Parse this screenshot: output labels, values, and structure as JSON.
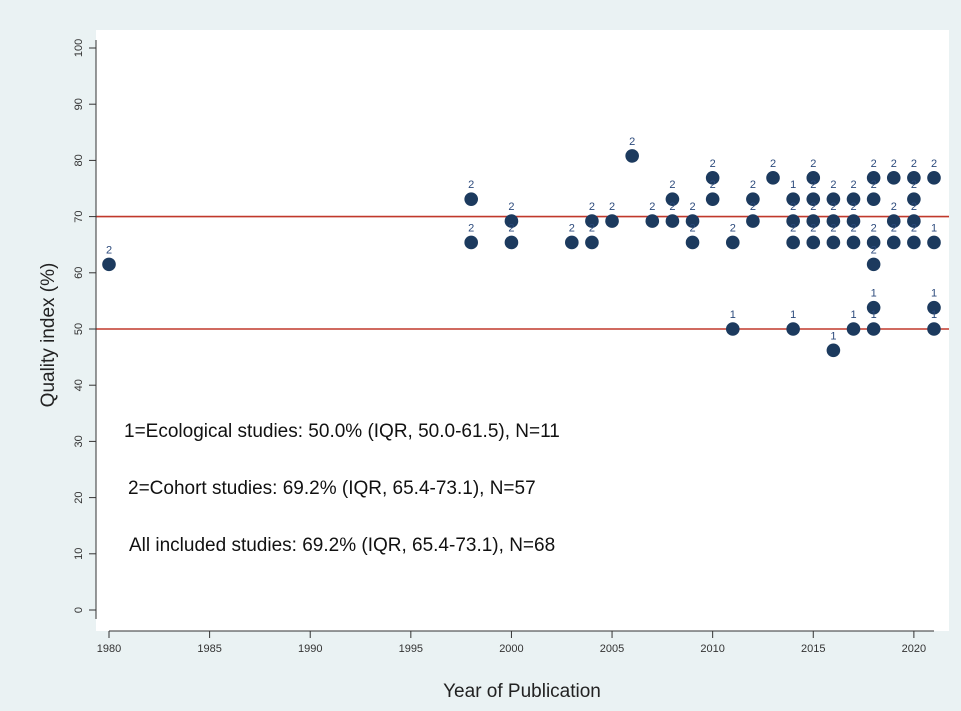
{
  "chart_data": {
    "type": "scatter",
    "xlabel": "Year of Publication",
    "ylabel": "Quality index (%)",
    "xlim": [
      1980,
      2021
    ],
    "ylim": [
      0,
      100
    ],
    "x_ticks": [
      1980,
      1985,
      1990,
      1995,
      2000,
      2005,
      2010,
      2015,
      2020
    ],
    "y_ticks": [
      0,
      10,
      20,
      30,
      40,
      50,
      60,
      70,
      80,
      90,
      100
    ],
    "grid": false,
    "reference_lines": [
      {
        "axis": "y",
        "value": 70,
        "color": "#c0392b"
      },
      {
        "axis": "y",
        "value": 50,
        "color": "#c0392b"
      }
    ],
    "point_color": "#1c3a5e",
    "label_color": "#2c4a7c",
    "points": [
      {
        "x": 1980,
        "y": 61.5,
        "label": "2"
      },
      {
        "x": 1998,
        "y": 73.1,
        "label": "2"
      },
      {
        "x": 1998,
        "y": 65.4,
        "label": "2"
      },
      {
        "x": 2000,
        "y": 69.2,
        "label": "2"
      },
      {
        "x": 2000,
        "y": 65.4,
        "label": "2"
      },
      {
        "x": 2003,
        "y": 65.4,
        "label": "2"
      },
      {
        "x": 2004,
        "y": 69.2,
        "label": "2"
      },
      {
        "x": 2004,
        "y": 65.4,
        "label": "2"
      },
      {
        "x": 2005,
        "y": 69.2,
        "label": "2"
      },
      {
        "x": 2006,
        "y": 80.8,
        "label": "2"
      },
      {
        "x": 2007,
        "y": 69.2,
        "label": "2"
      },
      {
        "x": 2008,
        "y": 73.1,
        "label": "2"
      },
      {
        "x": 2008,
        "y": 69.2,
        "label": "2"
      },
      {
        "x": 2009,
        "y": 69.2,
        "label": "2"
      },
      {
        "x": 2009,
        "y": 65.4,
        "label": "2"
      },
      {
        "x": 2010,
        "y": 76.9,
        "label": "2"
      },
      {
        "x": 2010,
        "y": 73.1,
        "label": "2"
      },
      {
        "x": 2011,
        "y": 65.4,
        "label": "2"
      },
      {
        "x": 2011,
        "y": 50.0,
        "label": "1"
      },
      {
        "x": 2012,
        "y": 73.1,
        "label": "2"
      },
      {
        "x": 2012,
        "y": 69.2,
        "label": "2"
      },
      {
        "x": 2013,
        "y": 76.9,
        "label": "2"
      },
      {
        "x": 2014,
        "y": 73.1,
        "label": "1"
      },
      {
        "x": 2014,
        "y": 69.2,
        "label": "2"
      },
      {
        "x": 2014,
        "y": 65.4,
        "label": "2"
      },
      {
        "x": 2014,
        "y": 50.0,
        "label": "1"
      },
      {
        "x": 2015,
        "y": 76.9,
        "label": "2"
      },
      {
        "x": 2015,
        "y": 73.1,
        "label": "2"
      },
      {
        "x": 2015,
        "y": 69.2,
        "label": "2"
      },
      {
        "x": 2015,
        "y": 65.4,
        "label": "2"
      },
      {
        "x": 2016,
        "y": 73.1,
        "label": "2"
      },
      {
        "x": 2016,
        "y": 69.2,
        "label": "2"
      },
      {
        "x": 2016,
        "y": 65.4,
        "label": "2"
      },
      {
        "x": 2016,
        "y": 46.2,
        "label": "1"
      },
      {
        "x": 2017,
        "y": 73.1,
        "label": "2"
      },
      {
        "x": 2017,
        "y": 69.2,
        "label": "2"
      },
      {
        "x": 2017,
        "y": 65.4,
        "label": "2"
      },
      {
        "x": 2017,
        "y": 50.0,
        "label": "1"
      },
      {
        "x": 2018,
        "y": 76.9,
        "label": "2"
      },
      {
        "x": 2018,
        "y": 73.1,
        "label": "2"
      },
      {
        "x": 2018,
        "y": 65.4,
        "label": "2"
      },
      {
        "x": 2018,
        "y": 61.5,
        "label": "2"
      },
      {
        "x": 2018,
        "y": 53.8,
        "label": "1"
      },
      {
        "x": 2018,
        "y": 50.0,
        "label": "1"
      },
      {
        "x": 2019,
        "y": 76.9,
        "label": "2"
      },
      {
        "x": 2019,
        "y": 69.2,
        "label": "2"
      },
      {
        "x": 2019,
        "y": 65.4,
        "label": "2"
      },
      {
        "x": 2020,
        "y": 76.9,
        "label": "2"
      },
      {
        "x": 2020,
        "y": 73.1,
        "label": "2"
      },
      {
        "x": 2020,
        "y": 69.2,
        "label": "2"
      },
      {
        "x": 2020,
        "y": 65.4,
        "label": "2"
      },
      {
        "x": 2021,
        "y": 76.9,
        "label": "2"
      },
      {
        "x": 2021,
        "y": 65.4,
        "label": "1"
      },
      {
        "x": 2021,
        "y": 53.8,
        "label": "1"
      },
      {
        "x": 2021,
        "y": 50.0,
        "label": "1"
      }
    ],
    "annotations": [
      "1=Ecological studies: 50.0% (IQR, 50.0-61.5), N=11",
      "2=Cohort studies: 69.2% (IQR, 65.4-73.1), N=57",
      "All included studies: 69.2% (IQR, 65.4-73.1), N=68"
    ]
  }
}
